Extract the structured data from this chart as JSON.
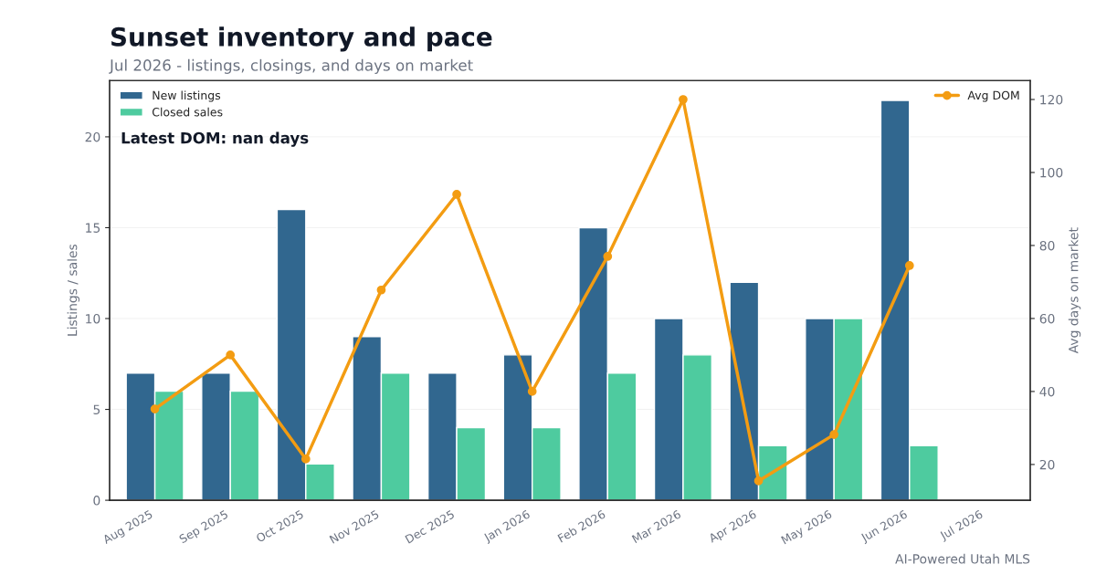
{
  "chart_data": {
    "type": "bar",
    "title": "Sunset inventory and pace",
    "subtitle": "Jul 2026 - listings, closings, and days on market",
    "categories": [
      "Aug 2025",
      "Sep 2025",
      "Oct 2025",
      "Nov 2025",
      "Dec 2025",
      "Jan 2026",
      "Feb 2026",
      "Mar 2026",
      "Apr 2026",
      "May 2026",
      "Jun 2026",
      "Jul 2026"
    ],
    "series": [
      {
        "name": "New listings",
        "color": "#31678f",
        "values": [
          7,
          7,
          16,
          9,
          7,
          8,
          15,
          10,
          12,
          10,
          22,
          null
        ]
      },
      {
        "name": "Closed sales",
        "color": "#4ecb9f",
        "values": [
          6,
          6,
          2,
          7,
          4,
          4,
          7,
          8,
          3,
          10,
          3,
          null
        ]
      },
      {
        "name": "Avg DOM",
        "type": "line",
        "axis": "y2",
        "color": "#f39c12",
        "marker": "circle",
        "values": [
          35.2,
          50,
          21.5,
          67.8,
          94,
          40,
          77,
          120,
          15.5,
          28.2,
          74.5,
          null
        ]
      }
    ],
    "ylabel": "Listings / sales",
    "y2label": "Avg days on market",
    "ylim": [
      0,
      23.1
    ],
    "yticks": [
      0,
      5,
      10,
      15,
      20
    ],
    "y2lim": [
      10.2,
      125.2
    ],
    "y2ticks": [
      20,
      40,
      60,
      80,
      100,
      120
    ],
    "grid": "y",
    "legend": "top left",
    "annotations": [
      "Latest DOM: nan days",
      "AI-Powered Utah MLS"
    ]
  }
}
